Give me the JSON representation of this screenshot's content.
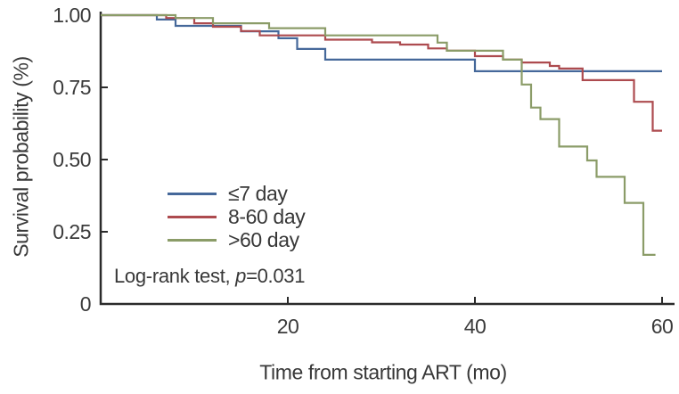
{
  "figure": {
    "annotation": {
      "prefix": "Log-rank test, ",
      "p_symbol": "p",
      "p_value": "=0.031"
    }
  },
  "chart_data": {
    "type": "line",
    "subtype": "kaplan-meier-step-survival",
    "title": "",
    "xlabel": "Time from starting ART (mo)",
    "ylabel": "Survival probability (%)",
    "xlim": [
      0,
      60
    ],
    "ylim": [
      0,
      1.0
    ],
    "grid": false,
    "legend_position": "inside-center-left",
    "axis_color": "#2b2b2b",
    "xticks": [
      {
        "value": 20,
        "label": "20"
      },
      {
        "value": 40,
        "label": "40"
      },
      {
        "value": 60,
        "label": "60"
      }
    ],
    "yticks": [
      {
        "value": 0,
        "label": "0"
      },
      {
        "value": 0.25,
        "label": "0.25"
      },
      {
        "value": 0.5,
        "label": "0.50"
      },
      {
        "value": 0.75,
        "label": "0.75"
      },
      {
        "value": 1.0,
        "label": "1.00"
      }
    ],
    "annotation_text": "Log-rank test, p=0.031",
    "series": [
      {
        "name": "≤7 day",
        "color": "#45689a",
        "end": 60,
        "points": [
          [
            0,
            1.0
          ],
          [
            6,
            0.985
          ],
          [
            8,
            0.963
          ],
          [
            15,
            0.944
          ],
          [
            19,
            0.92
          ],
          [
            21,
            0.883
          ],
          [
            24,
            0.846
          ],
          [
            40,
            0.806
          ]
        ]
      },
      {
        "name": "8-60 day",
        "color": "#ad4b4f",
        "end": 60,
        "points": [
          [
            0,
            1.0
          ],
          [
            7,
            0.99
          ],
          [
            10,
            0.972
          ],
          [
            12,
            0.96
          ],
          [
            15,
            0.945
          ],
          [
            17,
            0.93
          ],
          [
            24,
            0.915
          ],
          [
            29,
            0.906
          ],
          [
            32,
            0.898
          ],
          [
            35,
            0.885
          ],
          [
            37,
            0.877
          ],
          [
            40,
            0.858
          ],
          [
            43,
            0.846
          ],
          [
            45,
            0.836
          ],
          [
            48,
            0.824
          ],
          [
            49,
            0.815
          ],
          [
            51.5,
            0.775
          ],
          [
            57,
            0.7
          ],
          [
            59,
            0.6
          ]
        ]
      },
      {
        "name": ">60 day",
        "color": "#8b9c68",
        "end": 59.3,
        "points": [
          [
            0,
            1.0
          ],
          [
            8,
            0.99
          ],
          [
            12,
            0.972
          ],
          [
            18,
            0.955
          ],
          [
            24,
            0.93
          ],
          [
            36,
            0.905
          ],
          [
            37,
            0.877
          ],
          [
            43,
            0.846
          ],
          [
            45,
            0.76
          ],
          [
            46,
            0.68
          ],
          [
            47,
            0.64
          ],
          [
            49,
            0.545
          ],
          [
            52,
            0.497
          ],
          [
            53,
            0.44
          ],
          [
            56,
            0.35
          ],
          [
            58,
            0.17
          ]
        ]
      }
    ]
  }
}
